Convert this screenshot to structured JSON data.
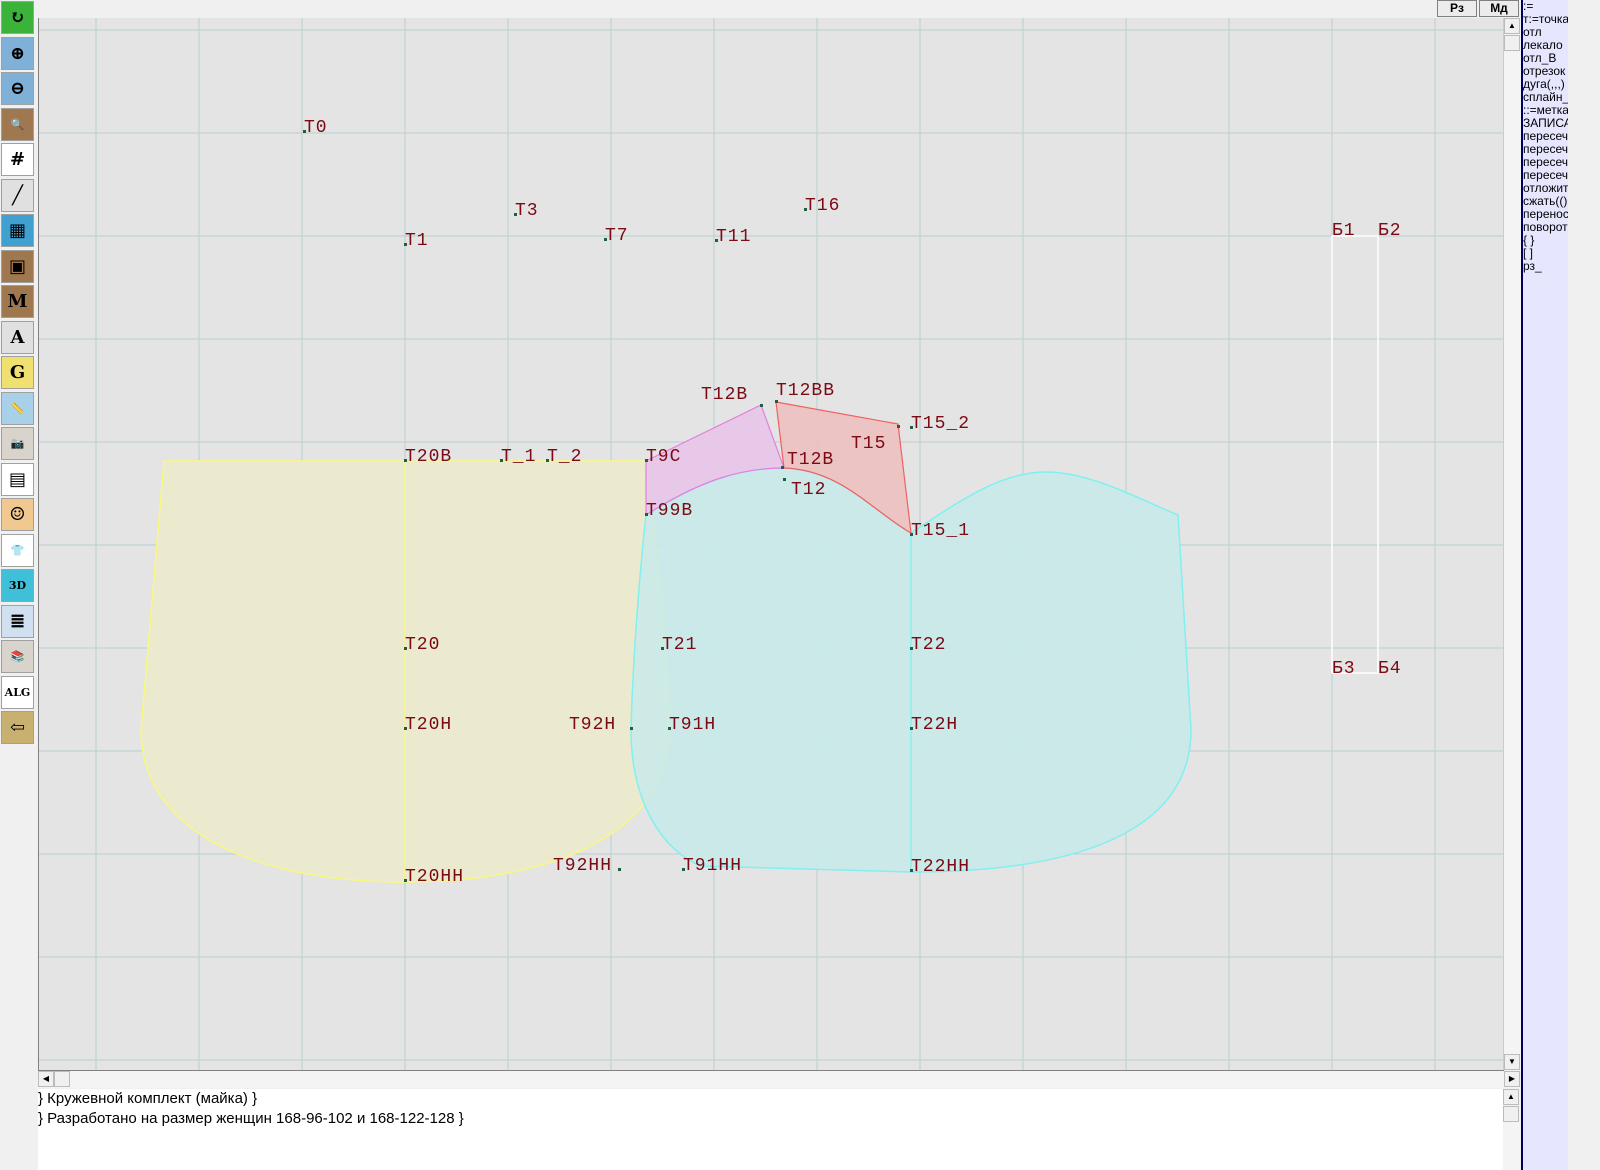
{
  "toolbar": {
    "items": [
      {
        "icon": "refresh-icon",
        "glyph": "↻",
        "color": "#3bb33b"
      },
      {
        "icon": "zoom-in-icon",
        "glyph": "⊕",
        "color": "#7fb0d8"
      },
      {
        "icon": "zoom-out-icon",
        "glyph": "⊖",
        "color": "#7fb0d8"
      },
      {
        "icon": "pattern-magnify-icon",
        "glyph": "🔍",
        "color": "#a07850"
      },
      {
        "icon": "grid-icon",
        "glyph": "#",
        "color": "#ffffff"
      },
      {
        "icon": "line-segment-icon",
        "glyph": "╱",
        "color": "#e0e0e0"
      },
      {
        "icon": "map-icon",
        "glyph": "▦",
        "color": "#40a0d0"
      },
      {
        "icon": "pattern-outline-icon",
        "glyph": "▣",
        "color": "#a07850"
      },
      {
        "icon": "pattern-m-icon",
        "glyph": "M",
        "color": "#a07850"
      },
      {
        "icon": "compass-icon",
        "glyph": "A",
        "color": "#e0e0e0"
      },
      {
        "icon": "pattern-g-icon",
        "glyph": "G",
        "color": "#f0e070"
      },
      {
        "icon": "ruler-icon",
        "glyph": "📏",
        "color": "#a8d0e8"
      },
      {
        "icon": "camera-icon",
        "glyph": "📷",
        "color": "#d8d4cc"
      },
      {
        "icon": "spreadsheet-icon",
        "glyph": "▤",
        "color": "#ffffff"
      },
      {
        "icon": "avatar-icon",
        "glyph": "☺",
        "color": "#f0c890"
      },
      {
        "icon": "jacket-icon",
        "glyph": "👕",
        "color": "#ffffff"
      },
      {
        "icon": "3d-icon",
        "glyph": "3D",
        "color": "#40c0d8"
      },
      {
        "icon": "document-list-icon",
        "glyph": "≣",
        "color": "#d0e0f0"
      },
      {
        "icon": "books-icon",
        "glyph": "📚",
        "color": "#d8d4cc"
      },
      {
        "icon": "algorithm-icon",
        "glyph": "ALG",
        "color": "#ffffff"
      },
      {
        "icon": "exit-icon",
        "glyph": "⇦",
        "color": "#c8b070"
      }
    ]
  },
  "topbar": {
    "rz_label": "Рз",
    "md_label": "Мд"
  },
  "right_panel": {
    "items": [
      ":=",
      "т:=точка",
      "отл",
      "лекало",
      "отл_В",
      "отрезок",
      "дуга(,,,)",
      "сплайн_",
      "::=метка",
      "ЗАПИСА",
      "пересеч",
      "пересеч",
      "пересеч",
      "пересеч",
      "отложит",
      "сжать(()",
      "перенос",
      "поворот",
      "{  }",
      "[  ]",
      "рз_"
    ]
  },
  "canvas": {
    "colors": {
      "background": "#e4e4e4",
      "grid": "#b8d0d0",
      "label": "#7a0a14",
      "front": "#eceacc",
      "back": "#cde9e9",
      "yoke_pink": "#e8c8e8",
      "yoke_red": "#ecc6c6"
    },
    "points": [
      "Т0",
      "Т1",
      "Т3",
      "Т7",
      "Т11",
      "Т16",
      "Т20В",
      "Т_1",
      "Т_2",
      "Т9С",
      "Т12В",
      "Т12ВВ",
      "Т15",
      "Т15_2",
      "Т12В",
      "Т12",
      "Т99В",
      "Т15_1",
      "Т20",
      "Т21",
      "Т22",
      "Т20Н",
      "Т92Н",
      "Т91Н",
      "Т22Н",
      "Т20НН",
      "Т92НН",
      "Т91НН",
      "Т22НН",
      "Б1",
      "Б2",
      "Б3",
      "Б4"
    ]
  },
  "bottom": {
    "lines": [
      "} Кружевной комплект (майка) }",
      "} Разработано на размер женщин 168-96-102 и 168-122-128 }"
    ]
  }
}
